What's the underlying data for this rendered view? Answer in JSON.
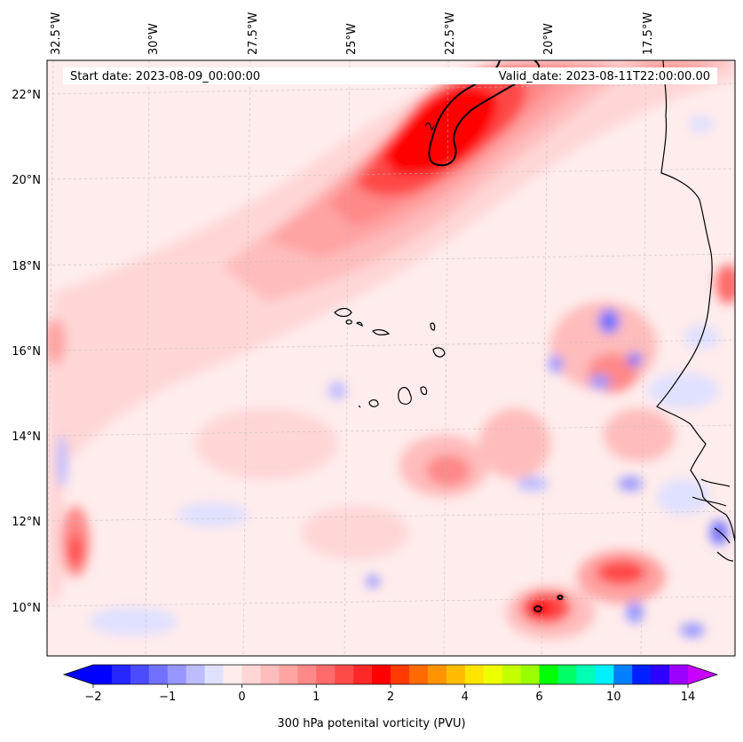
{
  "map": {
    "start_date": "Start date: 2023-08-09_00:00:00",
    "valid_date": "Valid_date: 2023-08-11T22:00:00.00",
    "lon_labels": [
      "32.5°W",
      "30°W",
      "27.5°W",
      "25°W",
      "22.5°W",
      "20°W",
      "17.5°W"
    ],
    "lat_labels": [
      "22°N",
      "20°N",
      "18°N",
      "16°N",
      "14°N",
      "12°N",
      "10°N"
    ],
    "contour_label": "2"
  },
  "colorbar": {
    "title": "300 hPa potenital vorticity (PVU)",
    "tick_labels": [
      "−2",
      "−1",
      "0",
      "1",
      "2",
      "4",
      "6",
      "10",
      "14"
    ],
    "colors": [
      "#0000ff",
      "#2626ff",
      "#4b4bff",
      "#7171ff",
      "#9797ff",
      "#bcbcff",
      "#e0e0ff",
      "#ffecec",
      "#ffd6d6",
      "#ffbcbc",
      "#ffa3a3",
      "#ff8888",
      "#ff6b6b",
      "#ff4a4a",
      "#ff2828",
      "#ff0000",
      "#ff3a00",
      "#ff6a00",
      "#ff9400",
      "#ffbc00",
      "#ffe400",
      "#eeff00",
      "#c4ff00",
      "#99ff00",
      "#00ff00",
      "#00ff66",
      "#00ffb4",
      "#00f0ff",
      "#0080ff",
      "#0020ff",
      "#2e00ff",
      "#9c00ff"
    ],
    "extend_low_color": "#0000ff",
    "extend_high_color": "#c800ff"
  }
}
